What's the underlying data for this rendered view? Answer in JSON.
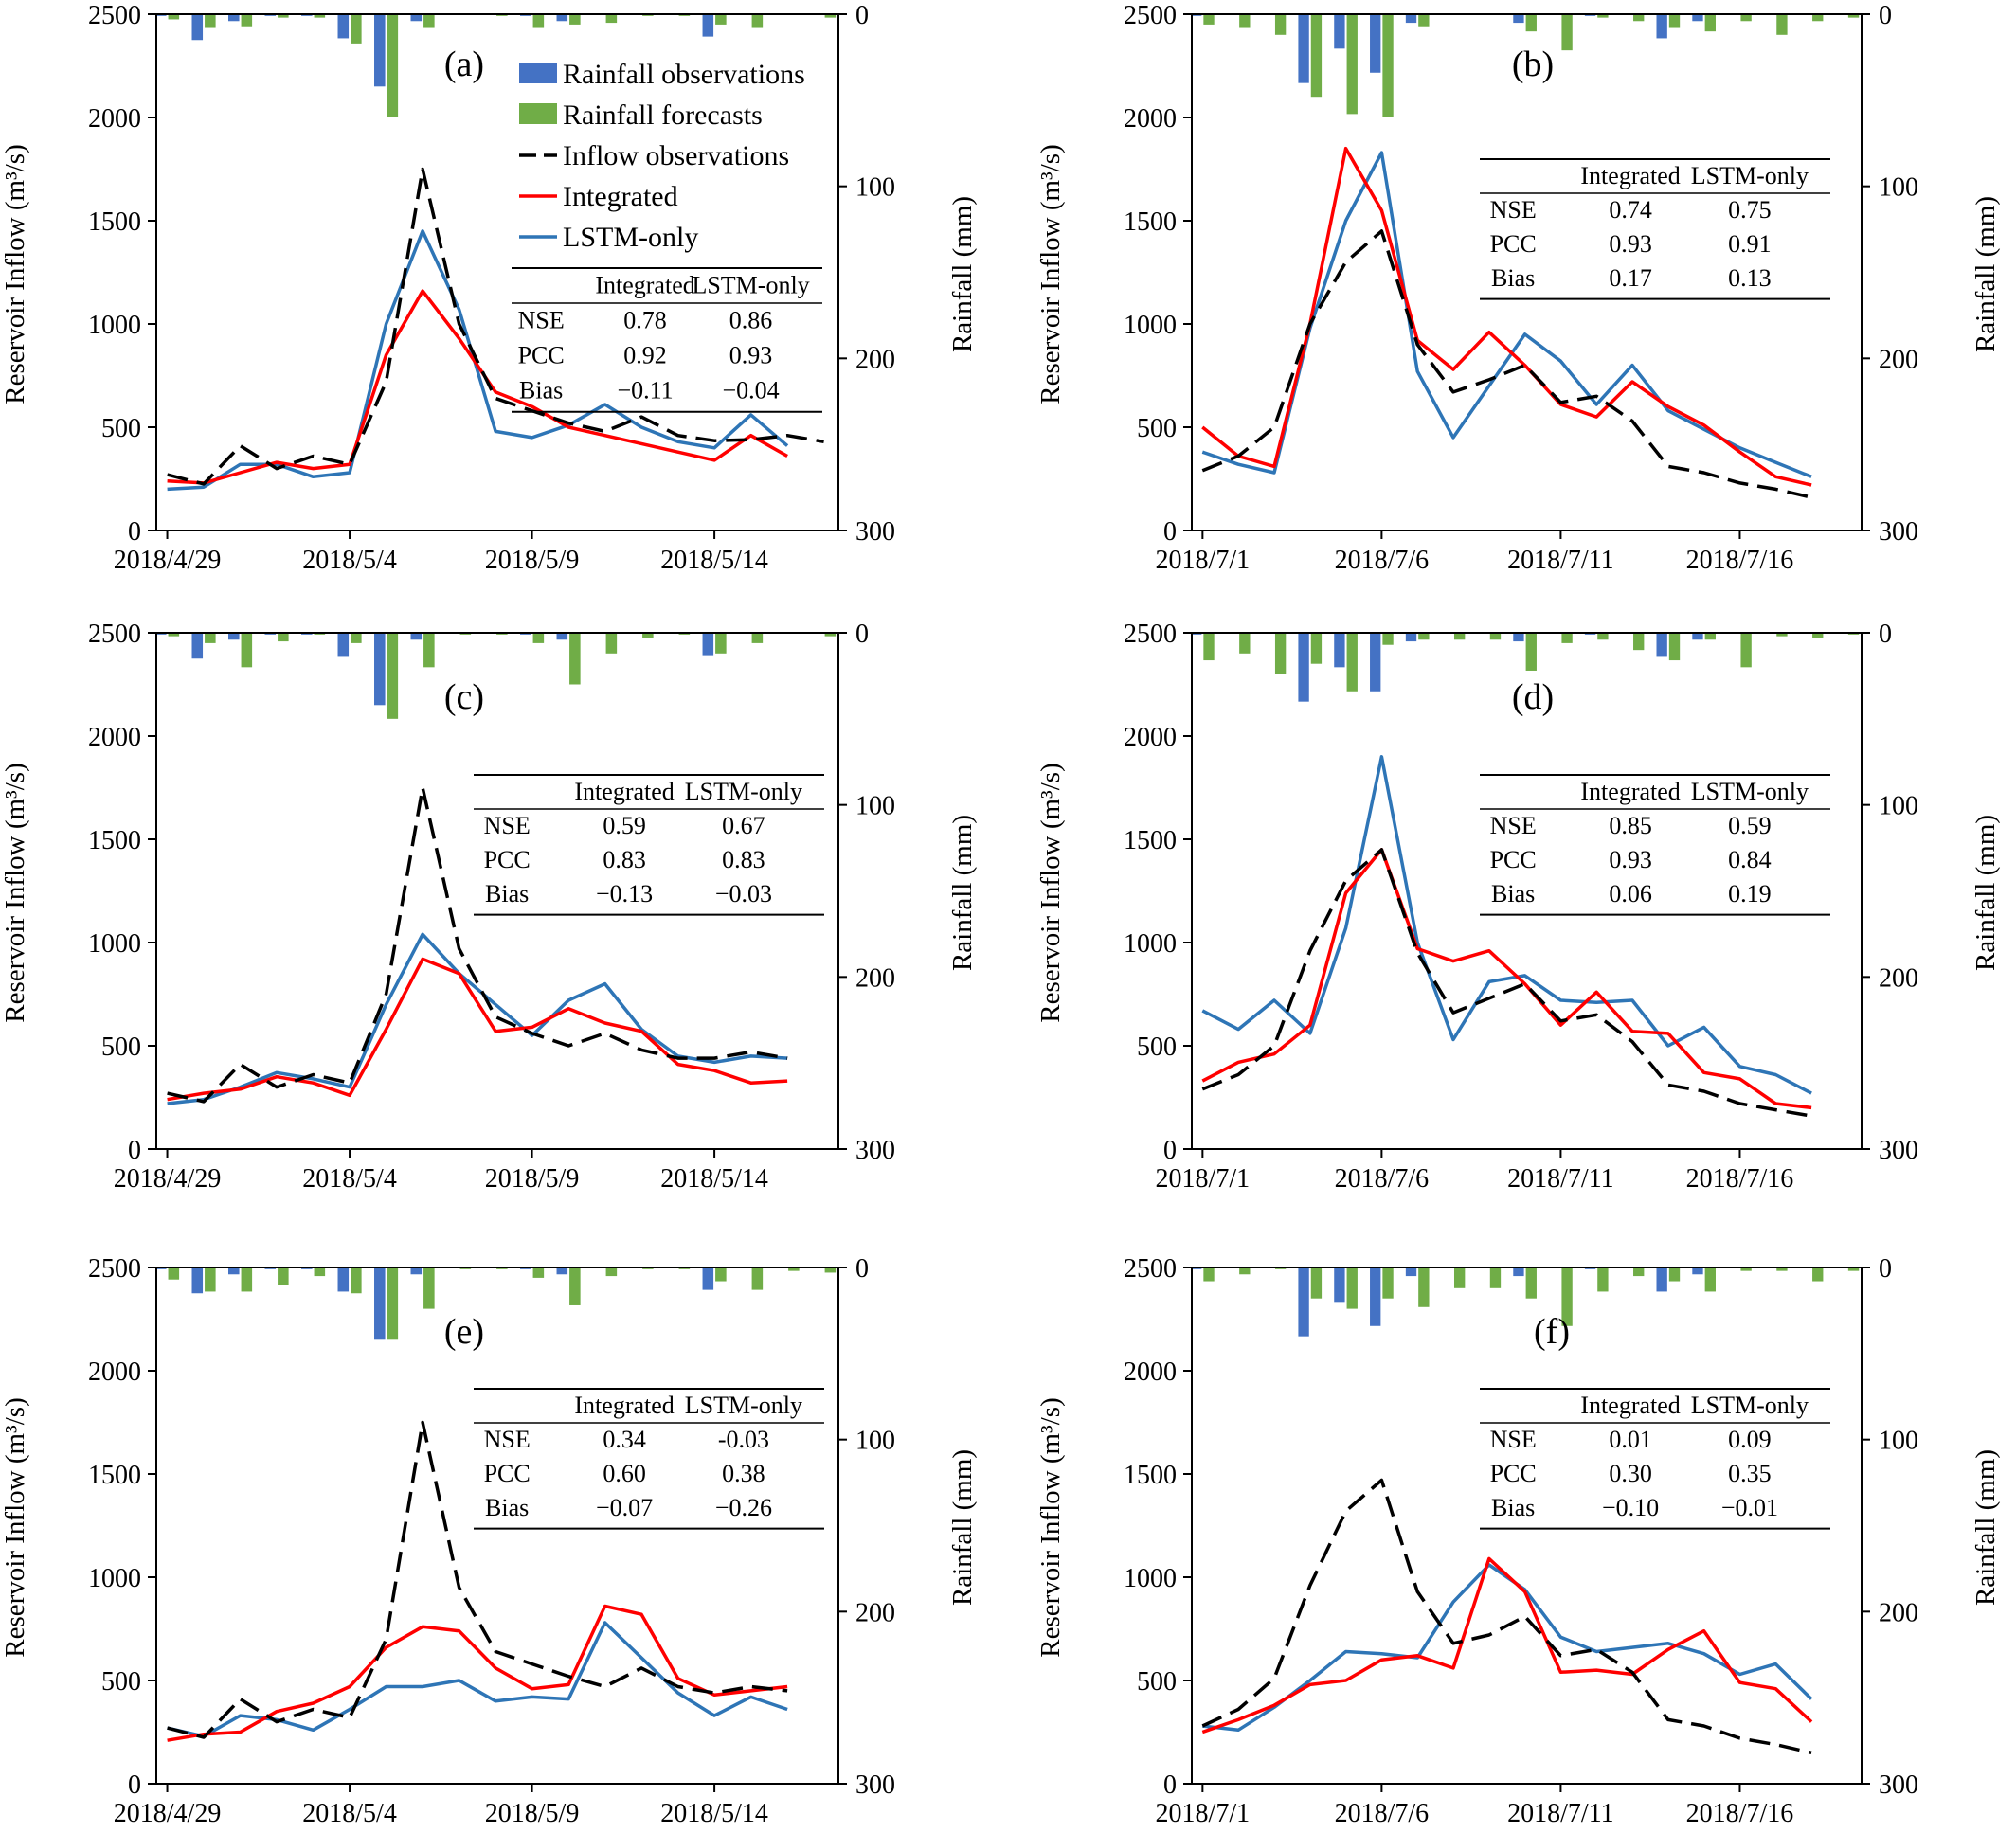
{
  "figure": {
    "shared": {
      "left_ylabel": "Reservoir Inflow (m³/s)",
      "right_ylabel": "Rainfall (mm)",
      "left_yticks": [
        "0",
        "500",
        "1000",
        "1500",
        "2000",
        "2500"
      ],
      "right_yticks": [
        "0",
        "100",
        "200",
        "300"
      ],
      "table_header": [
        "",
        "Integrated",
        "LSTM-only"
      ],
      "table_metrics": [
        "NSE",
        "PCC",
        "Bias"
      ]
    },
    "legend": {
      "rain_obs": "Rainfall observations",
      "rain_fc": "Rainfall forecasts",
      "inflow_obs": "Inflow observations",
      "integrated": "Integrated",
      "lstm": "LSTM-only"
    }
  },
  "colors": {
    "rain_obs": "#4472C4",
    "rain_fc": "#70AD47",
    "inflow_obs": "#000000",
    "integrated": "#FF0000",
    "lstm": "#2E75B6"
  },
  "chart_data": [
    {
      "type": "line",
      "panel": "(a)",
      "xticks": [
        "2018/4/29",
        "2018/5/4",
        "2018/5/9",
        "2018/5/14"
      ],
      "ylim": [
        0,
        2500
      ],
      "y2lim": [
        0,
        300
      ],
      "y2_inverted": true,
      "rain_obs": [
        1,
        15,
        4,
        1,
        1,
        14,
        42,
        4,
        0,
        0,
        1,
        4,
        0,
        0,
        0,
        13,
        0,
        0,
        0
      ],
      "rain_fc": [
        3,
        8,
        7,
        2,
        2,
        17,
        60,
        8,
        0,
        1,
        8,
        6,
        5,
        1,
        1,
        6,
        8,
        0,
        2
      ],
      "inflow_obs": [
        270,
        225,
        410,
        300,
        360,
        320,
        720,
        1750,
        1000,
        640,
        580,
        520,
        480,
        550,
        460,
        435,
        440,
        460,
        430
      ],
      "integrated": [
        240,
        230,
        280,
        330,
        300,
        320,
        850,
        1160,
        930,
        670,
        600,
        500,
        460,
        420,
        380,
        340,
        460,
        360
      ],
      "lstm": [
        200,
        210,
        320,
        320,
        260,
        280,
        1000,
        1450,
        1070,
        480,
        450,
        510,
        610,
        500,
        430,
        400,
        560,
        410
      ],
      "table": {
        "NSE": [
          "0.78",
          "0.86"
        ],
        "PCC": [
          "0.92",
          "0.93"
        ],
        "Bias": [
          "−0.11",
          "−0.04"
        ]
      }
    },
    {
      "type": "line",
      "panel": "(b)",
      "xticks": [
        "2018/7/1",
        "2018/7/6",
        "2018/7/11",
        "2018/7/16"
      ],
      "ylim": [
        0,
        2500
      ],
      "y2lim": [
        0,
        300
      ],
      "y2_inverted": true,
      "rain_obs": [
        1,
        0,
        0,
        40,
        20,
        34,
        5,
        0,
        0,
        5,
        0,
        1,
        0,
        14,
        4,
        0,
        0,
        0,
        0
      ],
      "rain_fc": [
        6,
        8,
        12,
        48,
        58,
        60,
        7,
        0,
        0,
        10,
        21,
        2,
        4,
        8,
        10,
        4,
        12,
        4,
        2
      ],
      "inflow_obs": [
        290,
        360,
        500,
        1000,
        1300,
        1450,
        900,
        670,
        730,
        800,
        620,
        650,
        530,
        310,
        280,
        230,
        200,
        160
      ],
      "integrated": [
        500,
        360,
        310,
        1000,
        1850,
        1550,
        920,
        780,
        960,
        800,
        610,
        550,
        720,
        600,
        510,
        380,
        260,
        220
      ],
      "lstm": [
        380,
        320,
        280,
        980,
        1500,
        1830,
        770,
        450,
        700,
        950,
        820,
        610,
        800,
        580,
        490,
        400,
        330,
        260
      ],
      "table": {
        "NSE": [
          "0.74",
          "0.75"
        ],
        "PCC": [
          "0.93",
          "0.91"
        ],
        "Bias": [
          "0.17",
          "0.13"
        ]
      }
    },
    {
      "type": "line",
      "panel": "(c)",
      "xticks": [
        "2018/4/29",
        "2018/5/4",
        "2018/5/9",
        "2018/5/14"
      ],
      "ylim": [
        0,
        2500
      ],
      "y2lim": [
        0,
        300
      ],
      "y2_inverted": true,
      "rain_obs": [
        1,
        15,
        4,
        1,
        1,
        14,
        42,
        4,
        0,
        0,
        1,
        4,
        0,
        0,
        0,
        13,
        0,
        0,
        0
      ],
      "rain_fc": [
        2,
        6,
        20,
        5,
        1,
        6,
        50,
        20,
        1,
        1,
        6,
        30,
        12,
        3,
        1,
        12,
        6,
        0,
        2
      ],
      "inflow_obs": [
        270,
        230,
        410,
        300,
        360,
        320,
        750,
        1750,
        970,
        640,
        560,
        500,
        560,
        480,
        440,
        440,
        470,
        440
      ],
      "integrated": [
        240,
        270,
        290,
        350,
        320,
        260,
        580,
        920,
        850,
        570,
        590,
        680,
        610,
        570,
        410,
        380,
        320,
        330
      ],
      "lstm": [
        220,
        240,
        300,
        370,
        340,
        300,
        700,
        1040,
        850,
        700,
        550,
        720,
        800,
        580,
        450,
        420,
        450,
        440
      ],
      "table": {
        "NSE": [
          "0.59",
          "0.67"
        ],
        "PCC": [
          "0.83",
          "0.83"
        ],
        "Bias": [
          "−0.13",
          "−0.03"
        ]
      }
    },
    {
      "type": "line",
      "panel": "(d)",
      "xticks": [
        "2018/7/1",
        "2018/7/6",
        "2018/7/11",
        "2018/7/16"
      ],
      "ylim": [
        0,
        2500
      ],
      "y2lim": [
        0,
        300
      ],
      "y2_inverted": true,
      "rain_obs": [
        1,
        0,
        0,
        40,
        20,
        34,
        5,
        0,
        0,
        5,
        0,
        1,
        0,
        14,
        4,
        0,
        0,
        0,
        0
      ],
      "rain_fc": [
        16,
        12,
        24,
        18,
        34,
        7,
        4,
        4,
        4,
        22,
        6,
        4,
        10,
        16,
        4,
        20,
        2,
        3,
        1
      ],
      "inflow_obs": [
        290,
        360,
        500,
        960,
        1300,
        1450,
        950,
        660,
        730,
        800,
        620,
        650,
        520,
        310,
        280,
        220,
        190,
        160
      ],
      "integrated": [
        330,
        420,
        460,
        600,
        1240,
        1450,
        970,
        910,
        960,
        800,
        600,
        760,
        570,
        560,
        370,
        340,
        220,
        200
      ],
      "lstm": [
        670,
        580,
        720,
        560,
        1070,
        1900,
        1000,
        530,
        810,
        840,
        720,
        710,
        720,
        500,
        590,
        400,
        360,
        270
      ],
      "table": {
        "NSE": [
          "0.85",
          "0.59"
        ],
        "PCC": [
          "0.93",
          "0.84"
        ],
        "Bias": [
          "0.06",
          "0.19"
        ]
      }
    },
    {
      "type": "line",
      "panel": "(e)",
      "xticks": [
        "2018/4/29",
        "2018/5/4",
        "2018/5/9",
        "2018/5/14"
      ],
      "ylim": [
        0,
        2500
      ],
      "y2lim": [
        0,
        300
      ],
      "y2_inverted": true,
      "rain_obs": [
        1,
        15,
        4,
        1,
        1,
        14,
        42,
        4,
        0,
        0,
        1,
        4,
        0,
        0,
        0,
        13,
        0,
        0,
        0
      ],
      "rain_fc": [
        7,
        14,
        14,
        10,
        5,
        15,
        42,
        24,
        1,
        1,
        6,
        22,
        5,
        1,
        1,
        8,
        13,
        2,
        3
      ],
      "inflow_obs": [
        270,
        225,
        410,
        300,
        360,
        320,
        700,
        1750,
        950,
        640,
        580,
        520,
        470,
        560,
        470,
        440,
        470,
        450
      ],
      "integrated": [
        210,
        240,
        250,
        350,
        390,
        470,
        660,
        760,
        740,
        560,
        460,
        480,
        860,
        820,
        510,
        430,
        450,
        470
      ],
      "lstm": [
        270,
        230,
        330,
        310,
        260,
        360,
        470,
        470,
        500,
        400,
        420,
        410,
        780,
        610,
        440,
        330,
        420,
        360
      ],
      "table": {
        "NSE": [
          "0.34",
          "-0.03"
        ],
        "PCC": [
          "0.60",
          "0.38"
        ],
        "Bias": [
          "−0.07",
          "−0.26"
        ]
      }
    },
    {
      "type": "line",
      "panel": "(f)",
      "xticks": [
        "2018/7/1",
        "2018/7/6",
        "2018/7/11",
        "2018/7/16"
      ],
      "ylim": [
        0,
        2500
      ],
      "y2lim": [
        0,
        300
      ],
      "y2_inverted": true,
      "rain_obs": [
        1,
        0,
        0,
        40,
        20,
        34,
        5,
        0,
        0,
        5,
        0,
        1,
        0,
        14,
        4,
        0,
        0,
        0,
        0
      ],
      "rain_fc": [
        8,
        4,
        1,
        18,
        24,
        18,
        23,
        12,
        12,
        18,
        34,
        14,
        5,
        8,
        14,
        2,
        2,
        8,
        2
      ],
      "inflow_obs": [
        280,
        360,
        510,
        960,
        1320,
        1470,
        930,
        680,
        720,
        810,
        620,
        650,
        540,
        310,
        280,
        220,
        190,
        150
      ],
      "integrated": [
        250,
        310,
        380,
        480,
        500,
        600,
        620,
        560,
        1090,
        930,
        540,
        550,
        530,
        650,
        740,
        490,
        460,
        300
      ],
      "lstm": [
        280,
        260,
        370,
        500,
        640,
        630,
        610,
        880,
        1060,
        940,
        710,
        640,
        660,
        680,
        630,
        530,
        580,
        410
      ],
      "table": {
        "NSE": [
          "0.01",
          "0.09"
        ],
        "PCC": [
          "0.30",
          "0.35"
        ],
        "Bias": [
          "−0.10",
          "−0.01"
        ]
      }
    }
  ]
}
